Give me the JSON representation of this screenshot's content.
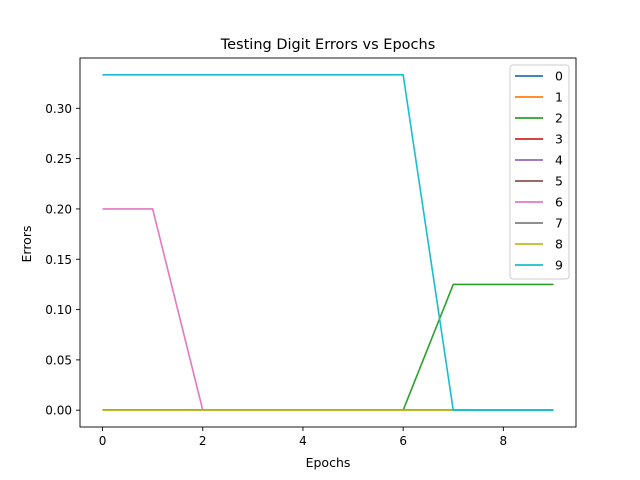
{
  "chart_data": {
    "type": "line",
    "title": "Testing Digit Errors vs Epochs",
    "xlabel": "Epochs",
    "ylabel": "Errors",
    "x": [
      0,
      1,
      2,
      3,
      4,
      5,
      6,
      7,
      8,
      9
    ],
    "xlim": [
      -0.45,
      9.45
    ],
    "ylim": [
      -0.0167,
      0.35
    ],
    "xticks": [
      0,
      2,
      4,
      6,
      8
    ],
    "yticks": [
      0.0,
      0.05,
      0.1,
      0.15,
      0.2,
      0.25,
      0.3
    ],
    "xtick_labels": [
      "0",
      "2",
      "4",
      "6",
      "8"
    ],
    "ytick_labels": [
      "0.00",
      "0.05",
      "0.10",
      "0.15",
      "0.20",
      "0.25",
      "0.30"
    ],
    "grid": false,
    "legend_position": "top-right",
    "series": [
      {
        "name": "0",
        "color": "#1f77b4",
        "values": [
          0,
          0,
          0,
          0,
          0,
          0,
          0,
          0,
          0,
          0
        ]
      },
      {
        "name": "1",
        "color": "#ff7f0e",
        "values": [
          0,
          0,
          0,
          0,
          0,
          0,
          0,
          0,
          0,
          0
        ]
      },
      {
        "name": "2",
        "color": "#2ca02c",
        "values": [
          0,
          0,
          0,
          0,
          0,
          0,
          0,
          0.125,
          0.125,
          0.125
        ]
      },
      {
        "name": "3",
        "color": "#d62728",
        "values": [
          0,
          0,
          0,
          0,
          0,
          0,
          0,
          0,
          0,
          0
        ]
      },
      {
        "name": "4",
        "color": "#9467bd",
        "values": [
          0,
          0,
          0,
          0,
          0,
          0,
          0,
          0,
          0,
          0
        ]
      },
      {
        "name": "5",
        "color": "#8c564b",
        "values": [
          0,
          0,
          0,
          0,
          0,
          0,
          0,
          0,
          0,
          0
        ]
      },
      {
        "name": "6",
        "color": "#e377c2",
        "values": [
          0.2,
          0.2,
          0,
          0,
          0,
          0,
          0,
          0,
          0,
          0
        ]
      },
      {
        "name": "7",
        "color": "#7f7f7f",
        "values": [
          0,
          0,
          0,
          0,
          0,
          0,
          0,
          0,
          0,
          0
        ]
      },
      {
        "name": "8",
        "color": "#bcbd22",
        "values": [
          0,
          0,
          0,
          0,
          0,
          0,
          0,
          0,
          0,
          0
        ]
      },
      {
        "name": "9",
        "color": "#17becf",
        "values": [
          0.3333,
          0.3333,
          0.3333,
          0.3333,
          0.3333,
          0.3333,
          0.3333,
          0,
          0,
          0
        ]
      }
    ]
  }
}
